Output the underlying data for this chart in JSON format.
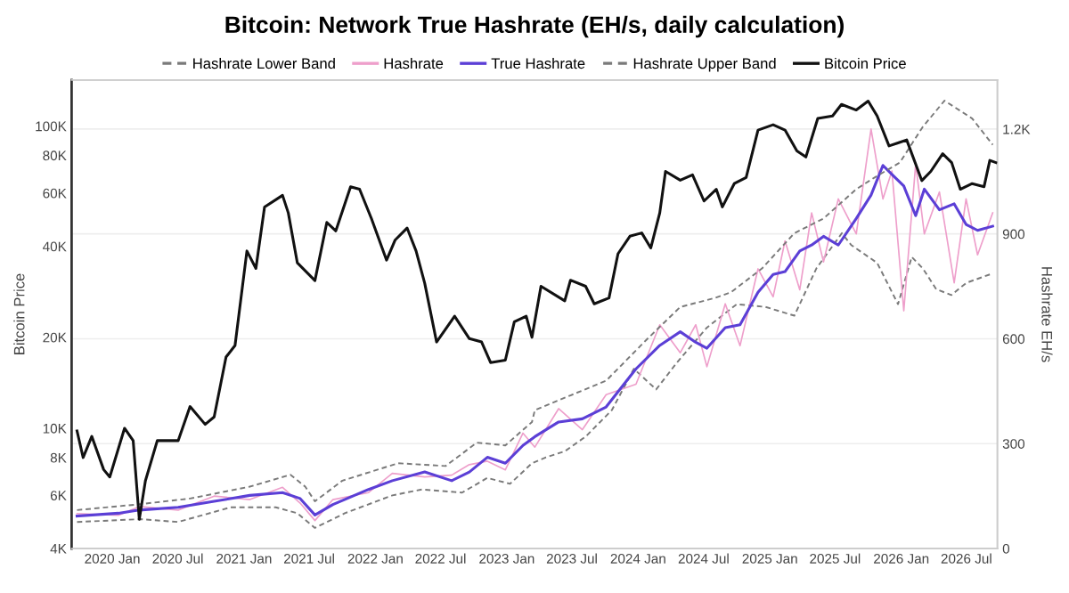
{
  "chart_data": {
    "type": "line",
    "title": "Bitcoin: Network True Hashrate (EH/s, daily calculation)",
    "ylabel": "Bitcoin Price",
    "y2label": "Hashrate EH/s",
    "log": "y",
    "grid": "y",
    "legend": "top",
    "marker": "none",
    "xlim": [
      "2019-09-10",
      "2026-09-25"
    ],
    "xticks": [
      {
        "value": "2020-01-01",
        "label": "2020 Jan"
      },
      {
        "value": "2020-07-01",
        "label": "2020 Jul"
      },
      {
        "value": "2021-01-01",
        "label": "2021 Jan"
      },
      {
        "value": "2021-07-01",
        "label": "2021 Jul"
      },
      {
        "value": "2022-01-01",
        "label": "2022 Jan"
      },
      {
        "value": "2022-07-01",
        "label": "2022 Jul"
      },
      {
        "value": "2023-01-01",
        "label": "2023 Jan"
      },
      {
        "value": "2023-07-01",
        "label": "2023 Jul"
      },
      {
        "value": "2024-01-01",
        "label": "2024 Jan"
      },
      {
        "value": "2024-07-01",
        "label": "2024 Jul"
      },
      {
        "value": "2025-01-01",
        "label": "2025 Jan"
      },
      {
        "value": "2025-07-01",
        "label": "2025 Jul"
      },
      {
        "value": "2026-01-01",
        "label": "2026 Jan"
      },
      {
        "value": "2026-07-01",
        "label": "2026 Jul"
      }
    ],
    "ylim": [
      4000,
      142000
    ],
    "yticks": [
      {
        "value": 4000,
        "label": "4K"
      },
      {
        "value": 6000,
        "label": "6K"
      },
      {
        "value": 8000,
        "label": "8K"
      },
      {
        "value": 10000,
        "label": "10K"
      },
      {
        "value": 20000,
        "label": "20K"
      },
      {
        "value": 40000,
        "label": "40K"
      },
      {
        "value": 60000,
        "label": "60K"
      },
      {
        "value": 80000,
        "label": "80K"
      },
      {
        "value": 100000,
        "label": "100K"
      }
    ],
    "y2lim": [
      0,
      1340
    ],
    "y2ticks": [
      0,
      300,
      600,
      900,
      {
        "value": 1200,
        "label": "1.2K"
      }
    ],
    "series": [
      {
        "name": "Hashrate Lower Band",
        "color": "#7a7a7a",
        "line_style": "dashed",
        "axis": "y2",
        "x": [
          "2019-09-25",
          "2020-03-20",
          "2020-07-02",
          "2020-11-25",
          "2021-03-30",
          "2021-05-29",
          "2021-07-17",
          "2021-10-08",
          "2022-02-17",
          "2022-05-10",
          "2022-08-30",
          "2022-11-08",
          "2023-01-10",
          "2023-03-12",
          "2023-04-20",
          "2023-06-11",
          "2023-08-08",
          "2023-10-20",
          "2023-12-20",
          "2024-02-20",
          "2024-04-17",
          "2024-07-10",
          "2024-10-01",
          "2024-12-20",
          "2025-03-10",
          "2025-05-10",
          "2025-07-20",
          "2025-08-15",
          "2025-10-26",
          "2025-12-23",
          "2026-01-30",
          "2026-03-02",
          "2026-04-08",
          "2026-05-20",
          "2026-07-01",
          "2026-09-04"
        ],
        "values": [
          76,
          84,
          76,
          118,
          118,
          101,
          59,
          101,
          152,
          169,
          160,
          202,
          185,
          244,
          261,
          278,
          320,
          396,
          514,
          455,
          531,
          632,
          699,
          691,
          666,
          801,
          902,
          868,
          817,
          699,
          834,
          801,
          742,
          725,
          760,
          784
        ]
      },
      {
        "name": "Hashrate",
        "color": "#ee9fcb",
        "axis": "y2",
        "x": [
          "2019-09-25",
          "2020-01-18",
          "2020-03-16",
          "2020-07-02",
          "2020-10-10",
          "2021-01-17",
          "2021-04-18",
          "2021-06-06",
          "2021-07-17",
          "2021-09-05",
          "2021-12-13",
          "2022-02-17",
          "2022-05-18",
          "2022-08-01",
          "2022-09-19",
          "2022-11-08",
          "2022-12-28",
          "2023-02-15",
          "2023-03-20",
          "2023-05-25",
          "2023-07-30",
          "2023-10-04",
          "2023-12-26",
          "2024-03-01",
          "2024-04-27",
          "2024-06-09",
          "2024-07-10",
          "2024-08-30",
          "2024-10-10",
          "2024-11-29",
          "2025-01-10",
          "2025-02-12",
          "2025-03-25",
          "2025-04-27",
          "2025-05-30",
          "2025-07-10",
          "2025-08-29",
          "2025-10-09",
          "2025-11-11",
          "2025-12-06",
          "2026-01-08",
          "2026-02-10",
          "2026-03-06",
          "2026-04-17",
          "2026-05-28",
          "2026-06-30",
          "2026-08-01",
          "2026-09-12"
        ],
        "values": [
          100,
          95,
          120,
          110,
          150,
          140,
          175,
          130,
          80,
          140,
          160,
          215,
          205,
          210,
          240,
          250,
          225,
          330,
          290,
          400,
          340,
          440,
          470,
          640,
          560,
          640,
          520,
          700,
          580,
          800,
          720,
          880,
          740,
          960,
          820,
          1000,
          900,
          1200,
          1000,
          1080,
          680,
          1100,
          900,
          1020,
          760,
          1000,
          840,
          960
        ]
      },
      {
        "name": "True Hashrate",
        "color": "#5b3fd6",
        "axis": "y2",
        "x": [
          "2019-09-25",
          "2020-01-18",
          "2020-03-16",
          "2020-07-02",
          "2020-10-10",
          "2021-01-17",
          "2021-04-18",
          "2021-06-06",
          "2021-07-17",
          "2021-09-05",
          "2021-12-13",
          "2022-02-17",
          "2022-05-18",
          "2022-08-01",
          "2022-09-19",
          "2022-11-08",
          "2022-12-28",
          "2023-02-15",
          "2023-03-20",
          "2023-05-25",
          "2023-07-30",
          "2023-10-04",
          "2023-12-26",
          "2024-03-01",
          "2024-04-27",
          "2024-06-09",
          "2024-07-10",
          "2024-08-30",
          "2024-10-10",
          "2024-11-29",
          "2025-01-10",
          "2025-02-12",
          "2025-03-25",
          "2025-04-27",
          "2025-05-30",
          "2025-07-10",
          "2025-08-29",
          "2025-10-09",
          "2025-11-11",
          "2025-12-06",
          "2026-01-08",
          "2026-02-10",
          "2026-03-06",
          "2026-04-17",
          "2026-05-28",
          "2026-06-30",
          "2026-08-01",
          "2026-09-12"
        ],
        "values": [
          93,
          101,
          110,
          118,
          135,
          152,
          160,
          143,
          96,
          126,
          169,
          194,
          219,
          194,
          219,
          261,
          244,
          295,
          320,
          362,
          371,
          405,
          514,
          581,
          620,
          590,
          573,
          632,
          640,
          733,
          784,
          792,
          851,
          868,
          893,
          868,
          944,
          1011,
          1096,
          1070,
          1037,
          952,
          1028,
          969,
          986,
          927,
          910,
          922
        ]
      },
      {
        "name": "Hashrate Upper Band",
        "color": "#7a7a7a",
        "line_style": "dashed",
        "axis": "y2",
        "x": [
          "2019-09-25",
          "2020-03-10",
          "2020-08-04",
          "2021-01-17",
          "2021-05-10",
          "2021-06-20",
          "2021-07-17",
          "2021-10-01",
          "2022-03-05",
          "2022-07-15",
          "2022-10-10",
          "2022-12-28",
          "2023-03-12",
          "2023-03-20",
          "2023-06-27",
          "2023-10-04",
          "2024-01-25",
          "2024-04-27",
          "2024-07-30",
          "2024-09-15",
          "2024-12-10",
          "2025-03-10",
          "2025-05-30",
          "2025-08-29",
          "2025-10-20",
          "2025-12-28",
          "2026-03-01",
          "2026-05-01",
          "2026-07-17",
          "2026-09-12"
        ],
        "values": [
          110,
          126,
          143,
          177,
          211,
          177,
          135,
          194,
          244,
          236,
          303,
          295,
          362,
          396,
          438,
          480,
          598,
          691,
          716,
          733,
          801,
          902,
          944,
          1028,
          1062,
          1104,
          1205,
          1281,
          1230,
          1155
        ]
      },
      {
        "name": "Bitcoin Price",
        "color": "#111111",
        "axis": "y",
        "x": [
          "2019-09-25",
          "2019-10-12",
          "2019-11-05",
          "2019-12-08",
          "2019-12-25",
          "2020-02-04",
          "2020-02-28",
          "2020-03-16",
          "2020-04-02",
          "2020-05-05",
          "2020-07-02",
          "2020-08-04",
          "2020-09-15",
          "2020-10-10",
          "2020-11-12",
          "2020-12-07",
          "2021-01-09",
          "2021-02-03",
          "2021-02-27",
          "2021-04-18",
          "2021-05-04",
          "2021-05-29",
          "2021-07-17",
          "2021-08-19",
          "2021-09-13",
          "2021-10-24",
          "2021-11-18",
          "2021-12-21",
          "2022-02-01",
          "2022-02-25",
          "2022-03-30",
          "2022-04-24",
          "2022-05-18",
          "2022-06-20",
          "2022-08-09",
          "2022-09-19",
          "2022-10-23",
          "2022-11-17",
          "2022-12-28",
          "2023-01-22",
          "2023-02-24",
          "2023-03-12",
          "2023-04-06",
          "2023-06-11",
          "2023-06-27",
          "2023-08-08",
          "2023-09-01",
          "2023-10-12",
          "2023-11-06",
          "2023-12-09",
          "2024-01-11",
          "2024-02-05",
          "2024-03-01",
          "2024-03-17",
          "2024-04-27",
          "2024-05-31",
          "2024-07-02",
          "2024-08-05",
          "2024-08-22",
          "2024-09-24",
          "2024-10-27",
          "2024-11-29",
          "2025-01-10",
          "2025-02-12",
          "2025-03-17",
          "2025-04-11",
          "2025-05-14",
          "2025-06-24",
          "2025-07-19",
          "2025-08-29",
          "2025-10-01",
          "2025-10-26",
          "2025-11-28",
          "2025-12-23",
          "2026-01-16",
          "2026-02-27",
          "2026-03-24",
          "2026-04-26",
          "2026-05-21",
          "2026-06-14",
          "2026-07-17",
          "2026-08-19",
          "2026-09-04",
          "2026-09-21"
        ],
        "values": [
          9800,
          8000,
          9400,
          7300,
          6900,
          10000,
          9100,
          5000,
          6700,
          9100,
          9100,
          11800,
          10300,
          10900,
          17200,
          18800,
          38600,
          33800,
          54000,
          59000,
          51600,
          35300,
          30800,
          48000,
          45000,
          63000,
          61800,
          49400,
          36000,
          42000,
          46000,
          38600,
          30200,
          19300,
          23500,
          19800,
          19300,
          16500,
          16800,
          22500,
          23500,
          20000,
          29500,
          26400,
          30900,
          29500,
          25800,
          27000,
          37800,
          43200,
          44300,
          39500,
          51600,
          70800,
          66200,
          69000,
          56500,
          61800,
          54000,
          64500,
          67600,
          97000,
          101000,
          97000,
          82800,
          79000,
          106000,
          108000,
          118000,
          113000,
          121000,
          108000,
          86000,
          88000,
          90000,
          66000,
          70800,
          81000,
          75700,
          61800,
          64500,
          63000,
          77000,
          75700
        ]
      }
    ]
  }
}
